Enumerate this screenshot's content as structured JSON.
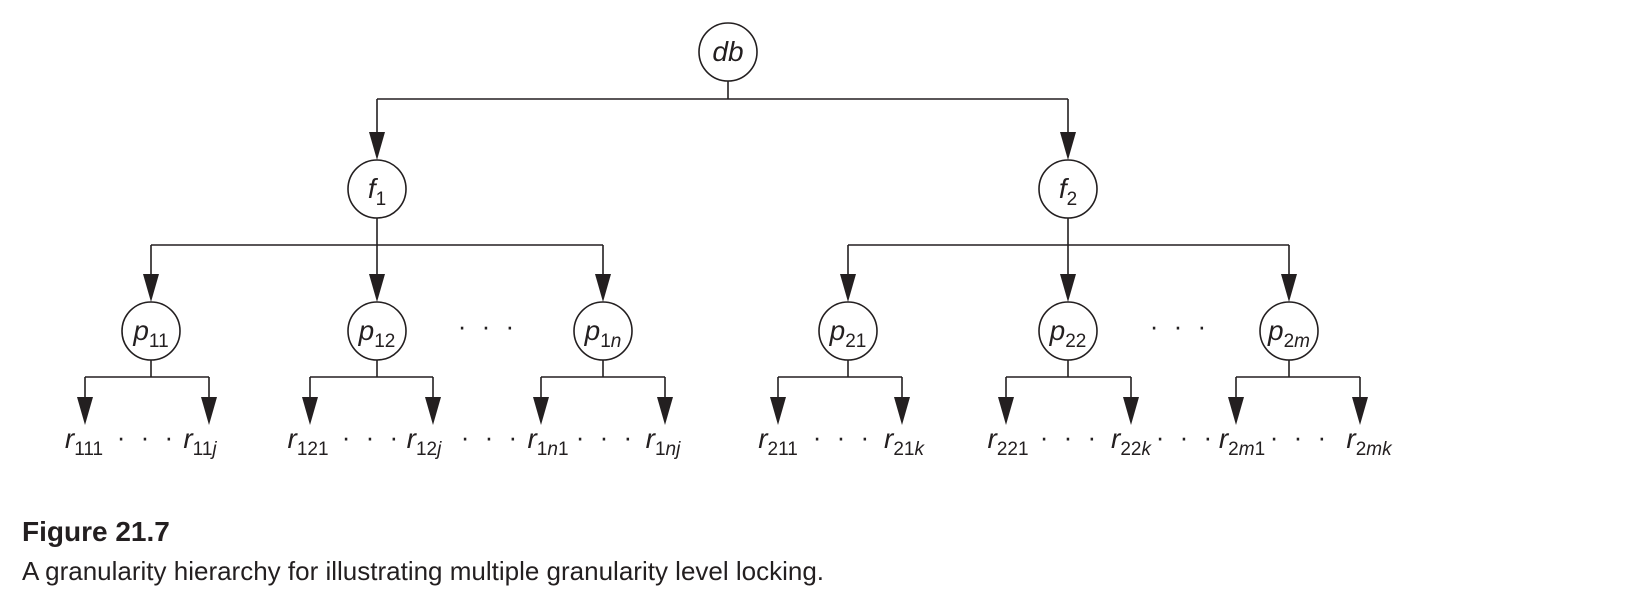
{
  "figure": {
    "label": "Figure 21.7",
    "caption": "A granularity hierarchy for illustrating multiple granularity level locking."
  },
  "diagram": {
    "root": {
      "name": "db",
      "sub": []
    },
    "files": [
      {
        "name": "f",
        "sub": [
          [
            "1",
            false
          ]
        ]
      },
      {
        "name": "f",
        "sub": [
          [
            "2",
            false
          ]
        ]
      }
    ],
    "pages": [
      {
        "name": "p",
        "sub": [
          [
            "11",
            false
          ]
        ]
      },
      {
        "name": "p",
        "sub": [
          [
            "12",
            false
          ]
        ]
      },
      {
        "name": "p",
        "sub": [
          [
            "1",
            false
          ],
          [
            "n",
            true
          ]
        ]
      },
      {
        "name": "p",
        "sub": [
          [
            "21",
            false
          ]
        ]
      },
      {
        "name": "p",
        "sub": [
          [
            "22",
            false
          ]
        ]
      },
      {
        "name": "p",
        "sub": [
          [
            "2",
            false
          ],
          [
            "m",
            true
          ]
        ]
      }
    ],
    "records": [
      {
        "name": "r",
        "sub": [
          [
            "111",
            false
          ]
        ]
      },
      {
        "name": "r",
        "sub": [
          [
            "11",
            false
          ],
          [
            "j",
            true
          ]
        ]
      },
      {
        "name": "r",
        "sub": [
          [
            "121",
            false
          ]
        ]
      },
      {
        "name": "r",
        "sub": [
          [
            "12",
            false
          ],
          [
            "j",
            true
          ]
        ]
      },
      {
        "name": "r",
        "sub": [
          [
            "1",
            false
          ],
          [
            "n",
            true
          ],
          [
            "1",
            false
          ]
        ]
      },
      {
        "name": "r",
        "sub": [
          [
            "1",
            false
          ],
          [
            "nj",
            true
          ]
        ]
      },
      {
        "name": "r",
        "sub": [
          [
            "211",
            false
          ]
        ]
      },
      {
        "name": "r",
        "sub": [
          [
            "21",
            false
          ],
          [
            "k",
            true
          ]
        ]
      },
      {
        "name": "r",
        "sub": [
          [
            "221",
            false
          ]
        ]
      },
      {
        "name": "r",
        "sub": [
          [
            "22",
            false
          ],
          [
            "k",
            true
          ]
        ]
      },
      {
        "name": "r",
        "sub": [
          [
            "2",
            false
          ],
          [
            "m",
            true
          ],
          [
            "1",
            false
          ]
        ]
      },
      {
        "name": "r",
        "sub": [
          [
            "2",
            false
          ],
          [
            "mk",
            true
          ]
        ]
      }
    ],
    "ellipsis": "· · ·"
  }
}
